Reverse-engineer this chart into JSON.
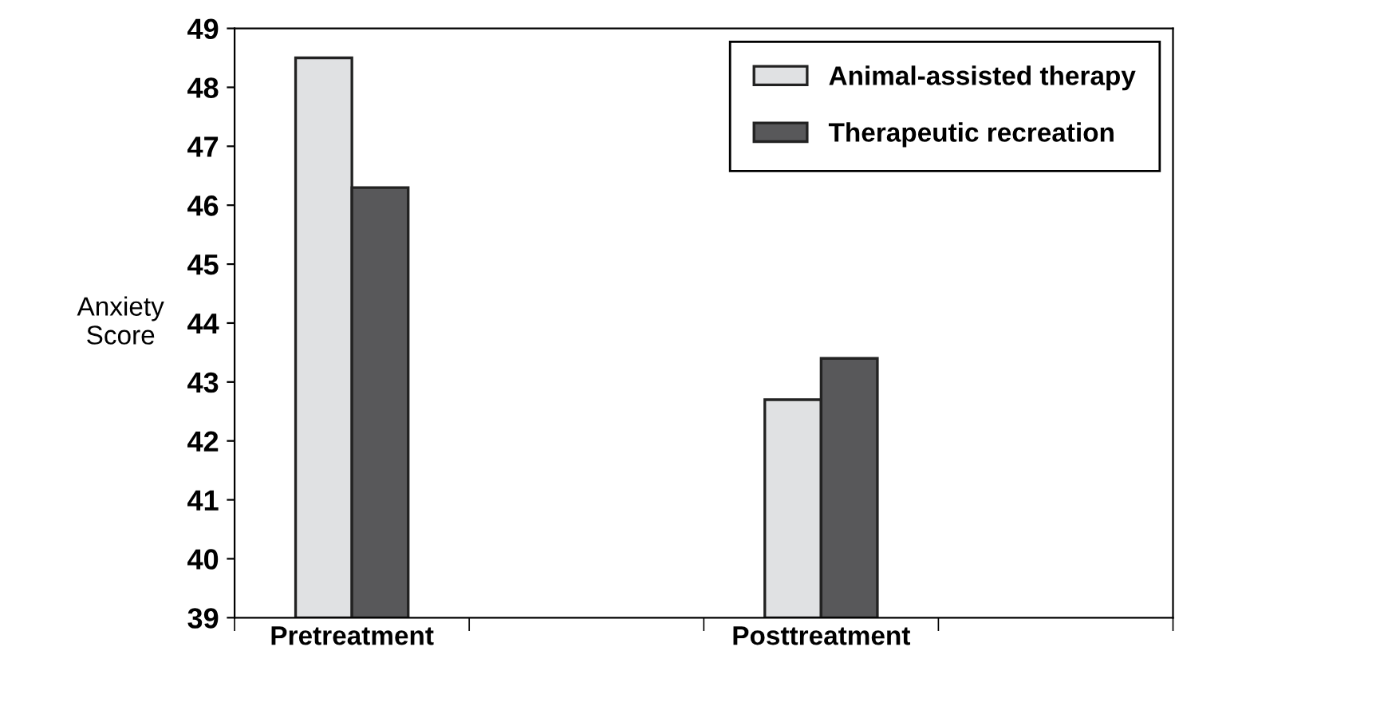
{
  "chart_data": {
    "type": "bar",
    "ylabel": "Anxiety\nScore",
    "categories": [
      "Pretreatment",
      null,
      "Posttreatment",
      null
    ],
    "series": [
      {
        "name": "Animal-assisted therapy",
        "color": "#e0e1e3",
        "values": [
          48.5,
          null,
          42.7,
          null
        ]
      },
      {
        "name": "Therapeutic recreation",
        "color": "#58585a",
        "values": [
          46.3,
          null,
          43.4,
          null
        ]
      }
    ],
    "ylim": [
      39,
      49
    ],
    "yticks": [
      39,
      40,
      41,
      42,
      43,
      44,
      45,
      46,
      47,
      48,
      49
    ],
    "grid": false,
    "legend": "top right"
  }
}
